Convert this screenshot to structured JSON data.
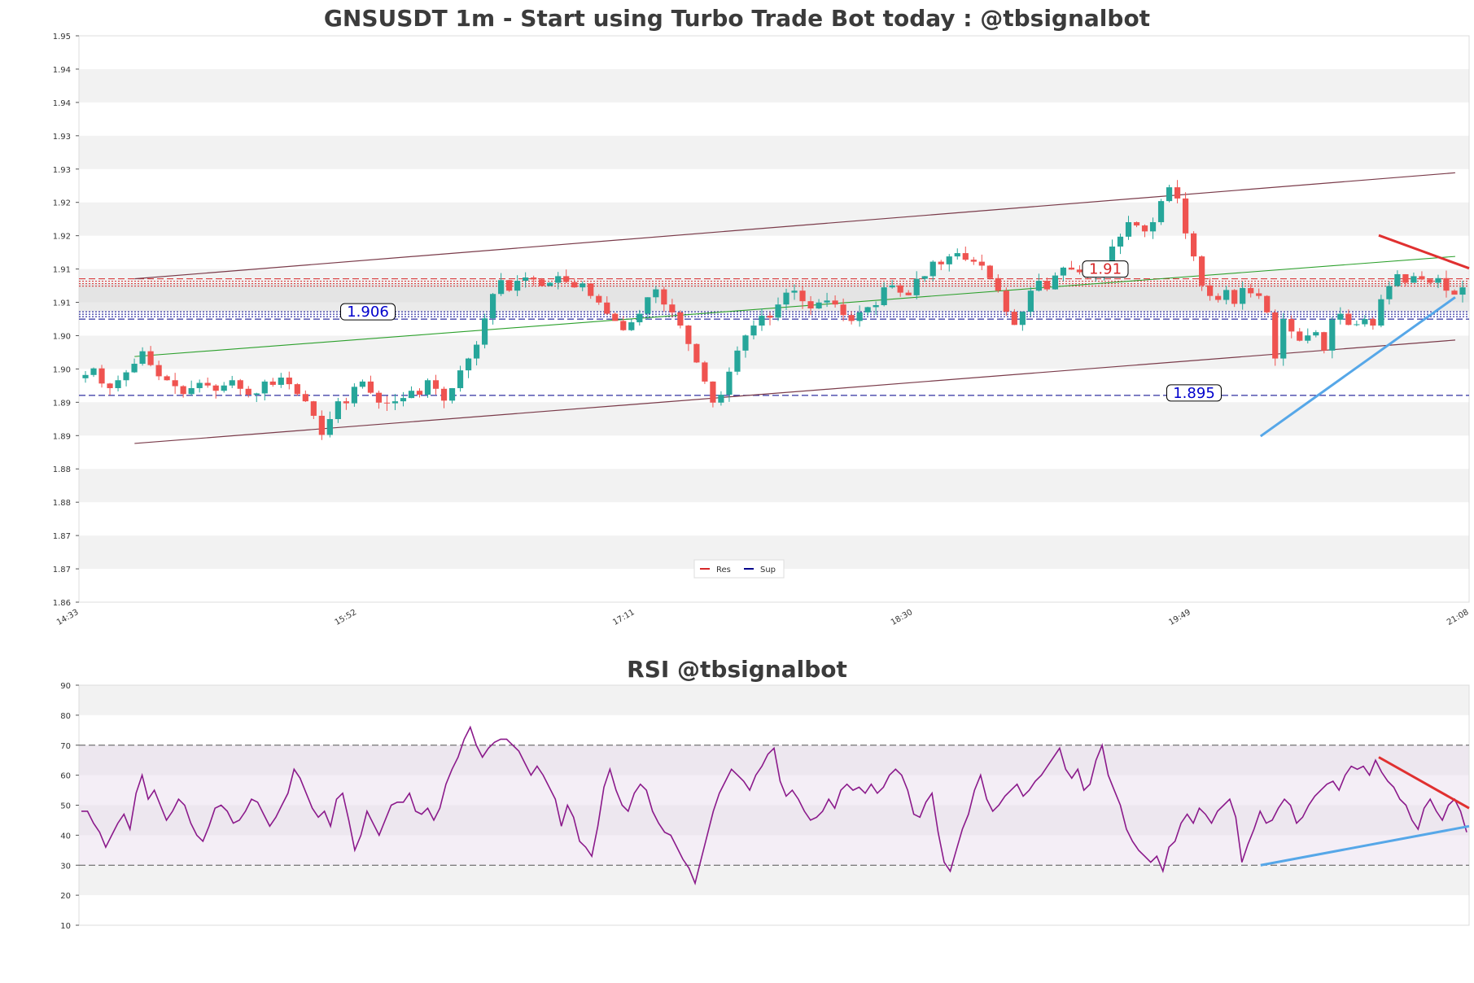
{
  "chart_data": [
    {
      "type": "candlestick",
      "title": "GNSUSDT 1m - Start using Turbo Trade Bot today : @tbsignalbot",
      "y_tick_labels": [
        "1.95",
        "1.94",
        "1.94",
        "1.93",
        "1.93",
        "1.92",
        "1.92",
        "1.91",
        "1.91",
        "1.90",
        "1.90",
        "1.89",
        "1.89",
        "1.88",
        "1.88",
        "1.87",
        "1.87",
        "1.86"
      ],
      "ylim": [
        1.862,
        1.948
      ],
      "x_tick_labels": [
        "14:33",
        "15:52",
        "17:11",
        "18:30",
        "19:49",
        "21:08"
      ],
      "grid": "horizontal bands",
      "legend": {
        "position": "bottom-center",
        "entries": [
          {
            "name": "Res",
            "color": "#d62728"
          },
          {
            "name": "Sup",
            "color": "#00008b"
          }
        ]
      },
      "levels": {
        "resistance": {
          "label": "1.91",
          "value": 1.9106
        },
        "support_upper": {
          "label": "1.906",
          "value": 1.9056
        },
        "support_lower": {
          "label": "1.895",
          "value": 1.8934
        }
      },
      "channel": {
        "upper": [
          [
            0.04,
            1.9111
          ],
          [
            0.99,
            1.9272
          ]
        ],
        "lower": [
          [
            0.04,
            1.8861
          ],
          [
            0.99,
            1.9018
          ]
        ],
        "middle": [
          [
            0.04,
            1.8993
          ],
          [
            0.99,
            1.9145
          ]
        ]
      },
      "trendlines": {
        "red_down": [
          [
            0.935,
            1.9177
          ],
          [
            1.0,
            1.9127
          ]
        ],
        "blue_up": [
          [
            0.85,
            1.8872
          ],
          [
            0.99,
            1.9083
          ]
        ]
      },
      "candles_close": [
        1.8965,
        1.8975,
        1.8952,
        1.8945,
        1.8957,
        1.8969,
        1.8982,
        1.9001,
        1.898,
        1.8963,
        1.8957,
        1.8948,
        1.8936,
        1.8945,
        1.8953,
        1.8949,
        1.8941,
        1.8949,
        1.8957,
        1.8944,
        1.8935,
        1.8937,
        1.8955,
        1.895,
        1.8961,
        1.8951,
        1.8936,
        1.8925,
        1.8903,
        1.8874,
        1.8898,
        1.8925,
        1.8922,
        1.8947,
        1.8955,
        1.8938,
        1.8923,
        1.8922,
        1.8925,
        1.893,
        1.8941,
        1.8935,
        1.8957,
        1.8944,
        1.8926,
        1.8945,
        1.8972,
        1.899,
        1.9011,
        1.9051,
        1.9088,
        1.9109,
        1.9093,
        1.9108,
        1.9113,
        1.911,
        1.91,
        1.9105,
        1.9115,
        1.9106,
        1.9098,
        1.9104,
        1.9085,
        1.9075,
        1.9058,
        1.9047,
        1.9033,
        1.9045,
        1.9058,
        1.9083,
        1.9095,
        1.9072,
        1.906,
        1.904,
        1.9012,
        1.8984,
        1.8955,
        1.8923,
        1.8935,
        1.897,
        1.9002,
        1.9025,
        1.904,
        1.9055,
        1.9052,
        1.9072,
        1.909,
        1.9093,
        1.9077,
        1.9066,
        1.9075,
        1.9078,
        1.9072,
        1.9056,
        1.9047,
        1.906,
        1.9068,
        1.9071,
        1.9098,
        1.9101,
        1.909,
        1.9086,
        1.9111,
        1.9115,
        1.9137,
        1.9133,
        1.9145,
        1.915,
        1.914,
        1.9137,
        1.9131,
        1.9112,
        1.9093,
        1.9061,
        1.9041,
        1.9061,
        1.9093,
        1.9108,
        1.9095,
        1.9116,
        1.9128,
        1.9125,
        1.9121,
        1.9113,
        1.9116,
        1.9135,
        1.916,
        1.9175,
        1.9197,
        1.9192,
        1.9183,
        1.9197,
        1.9229,
        1.925,
        1.9233,
        1.918,
        1.9145,
        1.9101,
        1.9085,
        1.9079,
        1.9094,
        1.9073,
        1.9097,
        1.9089,
        1.9085,
        1.906,
        1.899,
        1.905,
        1.9031,
        1.9017,
        1.9025,
        1.903,
        1.9002,
        1.9049,
        1.9058,
        1.9041,
        1.9042,
        1.905,
        1.904,
        1.908,
        1.91,
        1.9118,
        1.9105,
        1.9115,
        1.911,
        1.9105,
        1.9112,
        1.9093,
        1.9087,
        1.9098
      ]
    },
    {
      "type": "line",
      "title": "RSI @tbsignalbot",
      "y_tick_labels": [
        "90",
        "80",
        "70",
        "60",
        "50",
        "40",
        "30",
        "20",
        "10"
      ],
      "ylim": [
        10,
        90
      ],
      "overbought": 70,
      "oversold": 30,
      "series": [
        {
          "color": "#8b1a8b",
          "values": [
            48,
            48,
            44,
            41,
            36,
            40,
            44,
            47,
            42,
            54,
            60,
            52,
            55,
            50,
            45,
            48,
            52,
            50,
            44,
            40,
            38,
            43,
            49,
            50,
            48,
            44,
            45,
            48,
            52,
            51,
            47,
            43,
            46,
            50,
            54,
            62,
            59,
            54,
            49,
            46,
            48,
            43,
            52,
            54,
            45,
            35,
            40,
            48,
            44,
            40,
            45,
            50,
            51,
            51,
            54,
            48,
            47,
            49,
            45,
            49,
            57,
            62,
            66,
            72,
            76,
            70,
            66,
            69,
            71,
            72,
            72,
            70,
            68,
            64,
            60,
            63,
            60,
            56,
            52,
            43,
            50,
            46,
            38,
            36,
            33,
            43,
            56,
            62,
            55,
            50,
            48,
            54,
            57,
            55,
            48,
            44,
            41,
            40,
            36,
            32,
            29,
            24,
            32,
            40,
            48,
            54,
            58,
            62,
            60,
            58,
            55,
            60,
            63,
            67,
            69,
            58,
            53,
            55,
            52,
            48,
            45,
            46,
            48,
            52,
            49,
            55,
            57,
            55,
            56,
            54,
            57,
            54,
            56,
            60,
            62,
            60,
            55,
            47,
            46,
            51,
            54,
            41,
            31,
            28,
            35,
            42,
            47,
            55,
            60,
            52,
            48,
            50,
            53,
            55,
            57,
            53,
            55,
            58,
            60,
            63,
            66,
            69,
            62,
            59,
            62,
            55,
            57,
            65,
            70,
            60,
            55,
            50,
            42,
            38,
            35,
            33,
            31,
            33,
            28,
            36,
            38,
            44,
            47,
            44,
            49,
            47,
            44,
            48,
            50,
            52,
            46,
            31,
            37,
            42,
            48,
            44,
            45,
            49,
            52,
            50,
            44,
            46,
            50,
            53,
            55,
            57,
            58,
            55,
            60,
            63,
            62,
            63,
            60,
            65,
            61,
            58,
            56,
            52,
            50,
            45,
            42,
            49,
            52,
            48,
            45,
            50,
            52,
            48,
            41
          ]
        }
      ],
      "trendlines": {
        "red_down": [
          [
            0.935,
            66
          ],
          [
            1.0,
            49
          ]
        ],
        "blue_up": [
          [
            0.85,
            30
          ],
          [
            1.0,
            43
          ]
        ]
      }
    }
  ]
}
